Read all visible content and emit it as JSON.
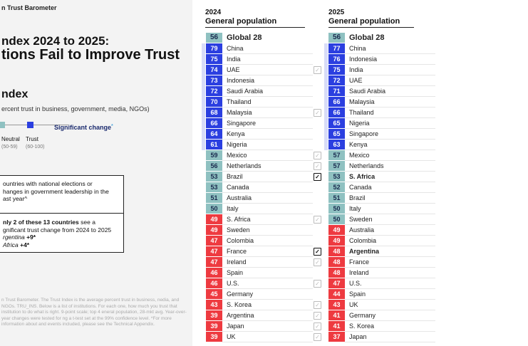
{
  "brand": "n Trust Barometer",
  "headline": {
    "line1": "ndex 2024 to 2025:",
    "line2": "tions Fail to Improve Trust"
  },
  "index": {
    "title": "ndex",
    "subtitle": "ercent trust in business, government, media, NGOs)"
  },
  "legend": {
    "neutral_label": "Neutral",
    "neutral_range": "(50-59)",
    "trust_label": "Trust",
    "trust_range": "(60-100)",
    "significant_change": "Significant change",
    "significant_marker": "*"
  },
  "callout": {
    "top_lines": [
      "ountries with national elections or",
      "hanges in government leadership in the",
      "ast year^"
    ],
    "bottom_lead": "nly 2 of these 13 countries",
    "bottom_rest": " see a",
    "bottom_line2": "gnificant trust change from 2024 to 2025",
    "item1_name": "rgentina",
    "item1_value": "+9*",
    "item2_name": "Africa",
    "item2_value": "+4*"
  },
  "footnote": "n Trust Barometer. The Trust Index is the average percent trust in business, nedia, and NGOs. TRU_INS. Below is a list of institutions. For each one, how much you trust that institution to do what is right. 9-point scale; top 4 eneral population, 28-mkt avg. Year-over-year changes were tested for ng a t-test set at the 99% confidence level. *For more information about and events included, please see the Technical Appendix.",
  "colors": {
    "trust": "#2b3fe0",
    "neutral": "#8fc1c1",
    "distrust": "#ee3a40",
    "band": "#d8dcf8"
  },
  "chart_data": [
    {
      "type": "table",
      "title": "2024",
      "subtitle": "General population",
      "global": {
        "name": "Global 28",
        "value": 56
      },
      "rows": [
        {
          "country": "China",
          "value": 79,
          "check": "none"
        },
        {
          "country": "India",
          "value": 75,
          "check": "none"
        },
        {
          "country": "UAE",
          "value": 74,
          "check": "light"
        },
        {
          "country": "Indonesia",
          "value": 73,
          "check": "none"
        },
        {
          "country": "Saudi Arabia",
          "value": 72,
          "check": "none"
        },
        {
          "country": "Thailand",
          "value": 70,
          "check": "none"
        },
        {
          "country": "Malaysia",
          "value": 68,
          "check": "light"
        },
        {
          "country": "Singapore",
          "value": 66,
          "check": "none"
        },
        {
          "country": "Kenya",
          "value": 64,
          "check": "none"
        },
        {
          "country": "Nigeria",
          "value": 61,
          "check": "none"
        },
        {
          "country": "Mexico",
          "value": 59,
          "check": "light"
        },
        {
          "country": "Netherlands",
          "value": 56,
          "check": "light"
        },
        {
          "country": "Brazil",
          "value": 53,
          "check": "significant"
        },
        {
          "country": "Canada",
          "value": 53,
          "check": "none"
        },
        {
          "country": "Australia",
          "value": 51,
          "check": "none"
        },
        {
          "country": "Italy",
          "value": 50,
          "check": "none"
        },
        {
          "country": "S. Africa",
          "value": 49,
          "check": "light"
        },
        {
          "country": "Sweden",
          "value": 49,
          "check": "none"
        },
        {
          "country": "Colombia",
          "value": 47,
          "check": "none"
        },
        {
          "country": "France",
          "value": 47,
          "check": "significant"
        },
        {
          "country": "Ireland",
          "value": 47,
          "check": "light"
        },
        {
          "country": "Spain",
          "value": 46,
          "check": "none"
        },
        {
          "country": "U.S.",
          "value": 46,
          "check": "light"
        },
        {
          "country": "Germany",
          "value": 45,
          "check": "none"
        },
        {
          "country": "S. Korea",
          "value": 43,
          "check": "light"
        },
        {
          "country": "Argentina",
          "value": 39,
          "check": "light"
        },
        {
          "country": "Japan",
          "value": 39,
          "check": "light"
        },
        {
          "country": "UK",
          "value": 39,
          "check": "light"
        }
      ]
    },
    {
      "type": "table",
      "title": "2025",
      "subtitle": "General population",
      "global": {
        "name": "Global 28",
        "value": 56
      },
      "rows": [
        {
          "country": "China",
          "value": 77
        },
        {
          "country": "Indonesia",
          "value": 76
        },
        {
          "country": "India",
          "value": 75
        },
        {
          "country": "UAE",
          "value": 72
        },
        {
          "country": "Saudi Arabia",
          "value": 71
        },
        {
          "country": "Malaysia",
          "value": 66
        },
        {
          "country": "Thailand",
          "value": 66
        },
        {
          "country": "Nigeria",
          "value": 65
        },
        {
          "country": "Singapore",
          "value": 65
        },
        {
          "country": "Kenya",
          "value": 63
        },
        {
          "country": "Mexico",
          "value": 57
        },
        {
          "country": "Netherlands",
          "value": 57
        },
        {
          "country": "S. Africa",
          "value": 53,
          "bold": true
        },
        {
          "country": "Canada",
          "value": 52
        },
        {
          "country": "Brazil",
          "value": 51
        },
        {
          "country": "Italy",
          "value": 50
        },
        {
          "country": "Sweden",
          "value": 50
        },
        {
          "country": "Australia",
          "value": 49
        },
        {
          "country": "Colombia",
          "value": 49
        },
        {
          "country": "Argentina",
          "value": 48,
          "bold": true
        },
        {
          "country": "France",
          "value": 48
        },
        {
          "country": "Ireland",
          "value": 48
        },
        {
          "country": "U.S.",
          "value": 47
        },
        {
          "country": "Spain",
          "value": 44
        },
        {
          "country": "UK",
          "value": 43
        },
        {
          "country": "Germany",
          "value": 41
        },
        {
          "country": "S. Korea",
          "value": 41
        },
        {
          "country": "Japan",
          "value": 37
        }
      ]
    }
  ]
}
